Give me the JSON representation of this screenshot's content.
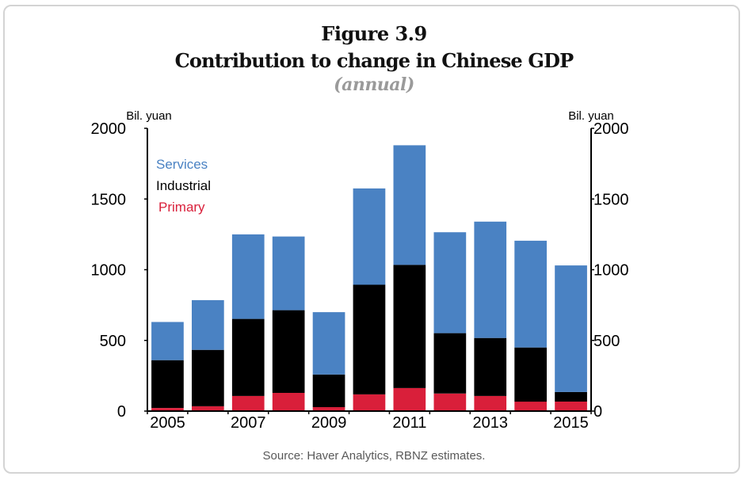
{
  "figure": {
    "number": "Figure 3.9",
    "title": "Contribution to change in Chinese GDP",
    "subtitle": "(annual)",
    "source": "Source: Haver Analytics, RBNZ estimates."
  },
  "chart_data": {
    "type": "bar",
    "stacked": true,
    "title": "Contribution to change in Chinese GDP",
    "subtitle": "(annual)",
    "xlabel": "",
    "ylabel_left": "Bil. yuan",
    "ylabel_right": "Bil. yuan",
    "ylim": [
      0,
      2000
    ],
    "yticks": [
      0,
      500,
      1000,
      1500,
      2000
    ],
    "categories": [
      "2005",
      "2006",
      "2007",
      "2008",
      "2009",
      "2010",
      "2011",
      "2012",
      "2013",
      "2014",
      "2015"
    ],
    "xtick_labels": [
      "2005",
      "",
      "2007",
      "",
      "2009",
      "",
      "2011",
      "",
      "2013",
      "",
      "2015"
    ],
    "legend_position": "top-left",
    "grid": false,
    "series": [
      {
        "name": "Primary",
        "color": "#D91F3A",
        "values": [
          22,
          34,
          107,
          129,
          28,
          118,
          163,
          124,
          107,
          67,
          67
        ]
      },
      {
        "name": "Industrial",
        "color": "#000000",
        "values": [
          338,
          399,
          545,
          585,
          231,
          776,
          871,
          427,
          410,
          383,
          68
        ]
      },
      {
        "name": "Services",
        "color": "#4A82C3",
        "values": [
          270,
          352,
          598,
          521,
          441,
          681,
          846,
          714,
          823,
          755,
          895
        ]
      }
    ],
    "totals": [
      630,
      785,
      1250,
      1235,
      700,
      1575,
      1880,
      1265,
      1340,
      1205,
      1030
    ],
    "legend": [
      {
        "name": "Services",
        "color": "#4A82C3"
      },
      {
        "name": "Industrial",
        "color": "#000000"
      },
      {
        "name": "Primary",
        "color": "#D91F3A"
      }
    ]
  }
}
